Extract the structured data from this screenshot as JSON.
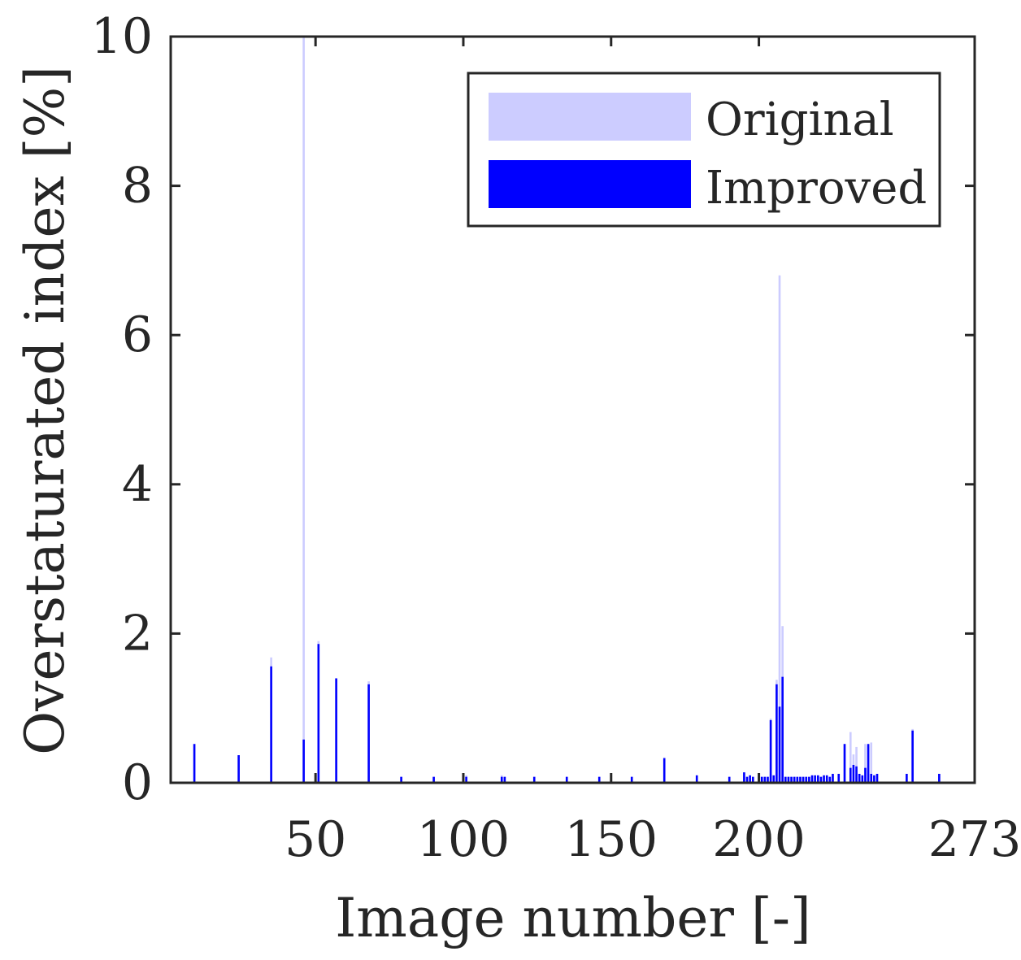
{
  "chart_data": {
    "type": "bar",
    "title": "",
    "xlabel": "Image number [-]",
    "ylabel": "Overstaturated index [%]",
    "xlim": [
      1,
      273
    ],
    "ylim": [
      0,
      10
    ],
    "xticks": [
      50,
      100,
      150,
      200,
      273
    ],
    "yticks": [
      0,
      2,
      4,
      6,
      8,
      10
    ],
    "grid": false,
    "legend_position": "top-right",
    "series": [
      {
        "name": "Original",
        "color": "#ccccff",
        "points": [
          [
            1,
            0.08
          ],
          [
            9,
            0.52
          ],
          [
            24,
            0.37
          ],
          [
            35,
            1.68
          ],
          [
            46,
            10.0
          ],
          [
            51,
            1.9
          ],
          [
            57,
            1.4
          ],
          [
            68,
            1.36
          ],
          [
            79,
            0.08
          ],
          [
            90,
            0.08
          ],
          [
            101,
            0.1
          ],
          [
            113,
            0.1
          ],
          [
            114,
            0.08
          ],
          [
            124,
            0.08
          ],
          [
            135,
            0.08
          ],
          [
            146,
            0.08
          ],
          [
            157,
            0.08
          ],
          [
            168,
            0.34
          ],
          [
            179,
            0.1
          ],
          [
            190,
            0.08
          ],
          [
            195,
            0.14
          ],
          [
            196,
            0.08
          ],
          [
            197,
            0.1
          ],
          [
            198,
            0.08
          ],
          [
            201,
            0.08
          ],
          [
            202,
            0.08
          ],
          [
            203,
            0.08
          ],
          [
            204,
            0.86
          ],
          [
            205,
            0.1
          ],
          [
            206,
            1.38
          ],
          [
            207,
            6.8
          ],
          [
            208,
            2.1
          ],
          [
            209,
            0.08
          ],
          [
            210,
            0.08
          ],
          [
            211,
            0.08
          ],
          [
            212,
            0.08
          ],
          [
            213,
            0.08
          ],
          [
            214,
            0.08
          ],
          [
            215,
            0.08
          ],
          [
            216,
            0.08
          ],
          [
            217,
            0.08
          ],
          [
            218,
            0.1
          ],
          [
            219,
            0.1
          ],
          [
            220,
            0.1
          ],
          [
            221,
            0.08
          ],
          [
            222,
            0.1
          ],
          [
            223,
            0.1
          ],
          [
            224,
            0.08
          ],
          [
            225,
            0.12
          ],
          [
            227,
            0.12
          ],
          [
            229,
            0.52
          ],
          [
            231,
            0.68
          ],
          [
            232,
            0.38
          ],
          [
            233,
            0.48
          ],
          [
            234,
            0.12
          ],
          [
            235,
            0.1
          ],
          [
            236,
            0.52
          ],
          [
            237,
            0.5
          ],
          [
            238,
            0.54
          ],
          [
            239,
            0.1
          ],
          [
            240,
            0.12
          ],
          [
            250,
            0.12
          ],
          [
            252,
            0.72
          ],
          [
            261,
            0.12
          ]
        ]
      },
      {
        "name": "Improved",
        "color": "#0000ff",
        "points": [
          [
            1,
            0.08
          ],
          [
            9,
            0.52
          ],
          [
            24,
            0.37
          ],
          [
            35,
            1.56
          ],
          [
            46,
            0.58
          ],
          [
            51,
            1.86
          ],
          [
            57,
            1.4
          ],
          [
            68,
            1.32
          ],
          [
            79,
            0.08
          ],
          [
            90,
            0.08
          ],
          [
            101,
            0.08
          ],
          [
            113,
            0.08
          ],
          [
            114,
            0.08
          ],
          [
            124,
            0.08
          ],
          [
            135,
            0.08
          ],
          [
            146,
            0.08
          ],
          [
            157,
            0.08
          ],
          [
            168,
            0.33
          ],
          [
            179,
            0.1
          ],
          [
            190,
            0.08
          ],
          [
            195,
            0.14
          ],
          [
            196,
            0.08
          ],
          [
            197,
            0.1
          ],
          [
            198,
            0.08
          ],
          [
            201,
            0.08
          ],
          [
            202,
            0.08
          ],
          [
            203,
            0.08
          ],
          [
            204,
            0.84
          ],
          [
            205,
            0.1
          ],
          [
            206,
            1.32
          ],
          [
            207,
            1.02
          ],
          [
            208,
            1.42
          ],
          [
            209,
            0.08
          ],
          [
            210,
            0.08
          ],
          [
            211,
            0.08
          ],
          [
            212,
            0.08
          ],
          [
            213,
            0.08
          ],
          [
            214,
            0.08
          ],
          [
            215,
            0.08
          ],
          [
            216,
            0.08
          ],
          [
            217,
            0.08
          ],
          [
            218,
            0.1
          ],
          [
            219,
            0.1
          ],
          [
            220,
            0.1
          ],
          [
            221,
            0.08
          ],
          [
            222,
            0.1
          ],
          [
            223,
            0.1
          ],
          [
            224,
            0.08
          ],
          [
            225,
            0.12
          ],
          [
            227,
            0.12
          ],
          [
            229,
            0.52
          ],
          [
            231,
            0.2
          ],
          [
            232,
            0.24
          ],
          [
            233,
            0.22
          ],
          [
            234,
            0.12
          ],
          [
            235,
            0.1
          ],
          [
            236,
            0.2
          ],
          [
            237,
            0.52
          ],
          [
            238,
            0.12
          ],
          [
            239,
            0.1
          ],
          [
            240,
            0.12
          ],
          [
            250,
            0.12
          ],
          [
            252,
            0.7
          ],
          [
            261,
            0.12
          ]
        ]
      }
    ]
  }
}
